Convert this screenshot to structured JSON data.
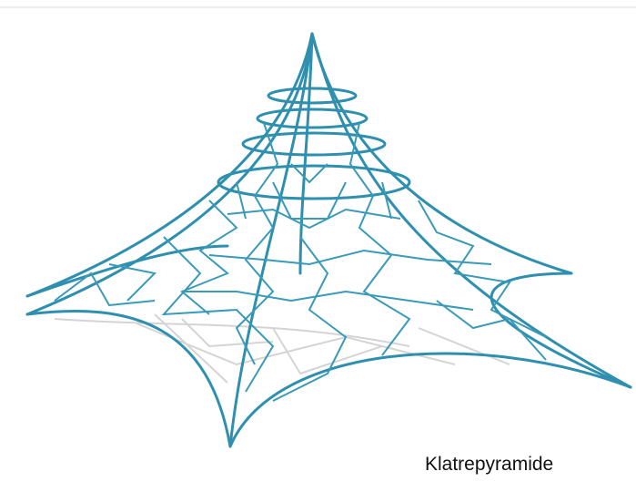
{
  "caption": "Klatrepyramide"
}
